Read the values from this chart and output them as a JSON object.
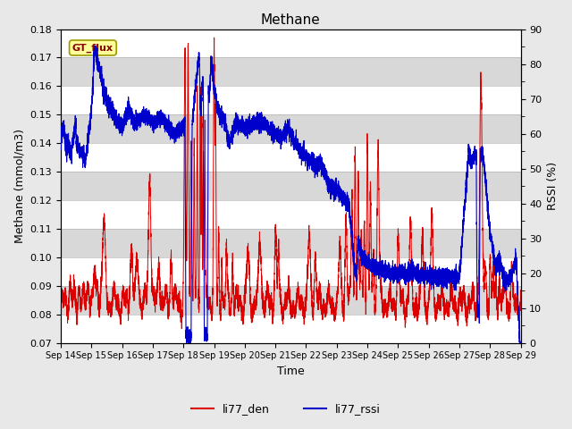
{
  "title": "Methane",
  "ylabel_left": "Methane (mmol/m3)",
  "ylabel_right": "RSSI (%)",
  "xlabel": "Time",
  "ylim_left": [
    0.07,
    0.18
  ],
  "ylim_right": [
    0,
    90
  ],
  "yticks_left": [
    0.07,
    0.08,
    0.09,
    0.1,
    0.11,
    0.12,
    0.13,
    0.14,
    0.15,
    0.16,
    0.17,
    0.18
  ],
  "yticks_right": [
    0,
    10,
    20,
    30,
    40,
    50,
    60,
    70,
    80,
    90
  ],
  "xtick_labels": [
    "Sep 14",
    "Sep 15",
    "Sep 16",
    "Sep 17",
    "Sep 18",
    "Sep 19",
    "Sep 20",
    "Sep 21",
    "Sep 22",
    "Sep 23",
    "Sep 24",
    "Sep 25",
    "Sep 26",
    "Sep 27",
    "Sep 28",
    "Sep 29"
  ],
  "legend_label_box": "GT_flux",
  "legend_label_red": "li77_den",
  "legend_label_blue": "li77_rssi",
  "fig_bg_color": "#e8e8e8",
  "plot_bg_color": "#e8e8e8",
  "stripe_light": "#e8e8e8",
  "stripe_dark": "#d8d8d8",
  "line_color_red": "#dd0000",
  "line_color_blue": "#0000cc",
  "grid_color": "#ffffff",
  "box_facecolor": "#ffff99",
  "box_edgecolor": "#999900",
  "title_fontsize": 11,
  "axis_fontsize": 9,
  "tick_fontsize": 8
}
